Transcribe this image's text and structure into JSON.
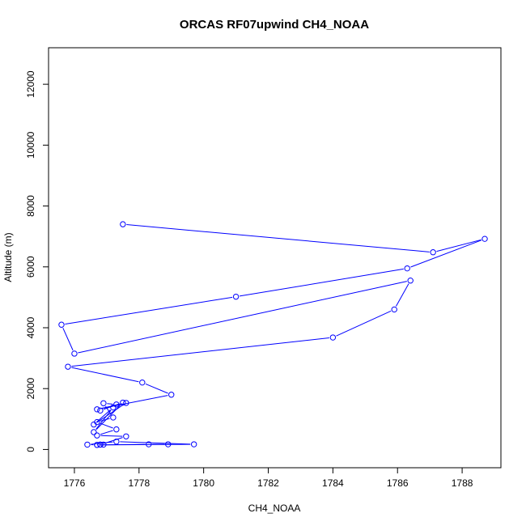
{
  "chart_data": {
    "type": "line",
    "title": "ORCAS RF07upwind CH4_NOAA",
    "xlabel": "CH4_NOAA",
    "ylabel": "Altitude (m)",
    "xlim": [
      1775.2,
      1789.2
    ],
    "ylim": [
      -600,
      13200
    ],
    "xticks": [
      1776,
      1778,
      1780,
      1782,
      1784,
      1786,
      1788
    ],
    "yticks": [
      0,
      2000,
      4000,
      6000,
      8000,
      10000,
      12000
    ],
    "grid": false,
    "legend": "none",
    "color": "#0000ff",
    "marker": "open-circle",
    "series": [
      {
        "x": [
          1777.5,
          1787.1,
          1788.7,
          1786.3,
          1781.0,
          1775.6,
          1776.0,
          1786.4,
          1785.9,
          1784.0,
          1775.8,
          1778.1,
          1779.0,
          1776.7,
          1777.6,
          1776.6,
          1777.2,
          1776.6,
          1777.5,
          1776.8,
          1777.3,
          1776.9,
          1777.2,
          1776.7,
          1777.3,
          1776.7,
          1777.6,
          1776.8,
          1776.9,
          1776.8,
          1776.7,
          1776.4,
          1777.3,
          1779.7,
          1776.7,
          1778.3,
          1778.9
        ],
        "y": [
          7400,
          6480,
          6920,
          5950,
          5020,
          4100,
          3150,
          5550,
          4600,
          3680,
          2720,
          2200,
          1800,
          1320,
          1530,
          820,
          1380,
          570,
          1540,
          1280,
          1480,
          1520,
          1050,
          900,
          660,
          460,
          430,
          160,
          160,
          160,
          150,
          160,
          260,
          170,
          150,
          170,
          170
        ]
      }
    ]
  }
}
